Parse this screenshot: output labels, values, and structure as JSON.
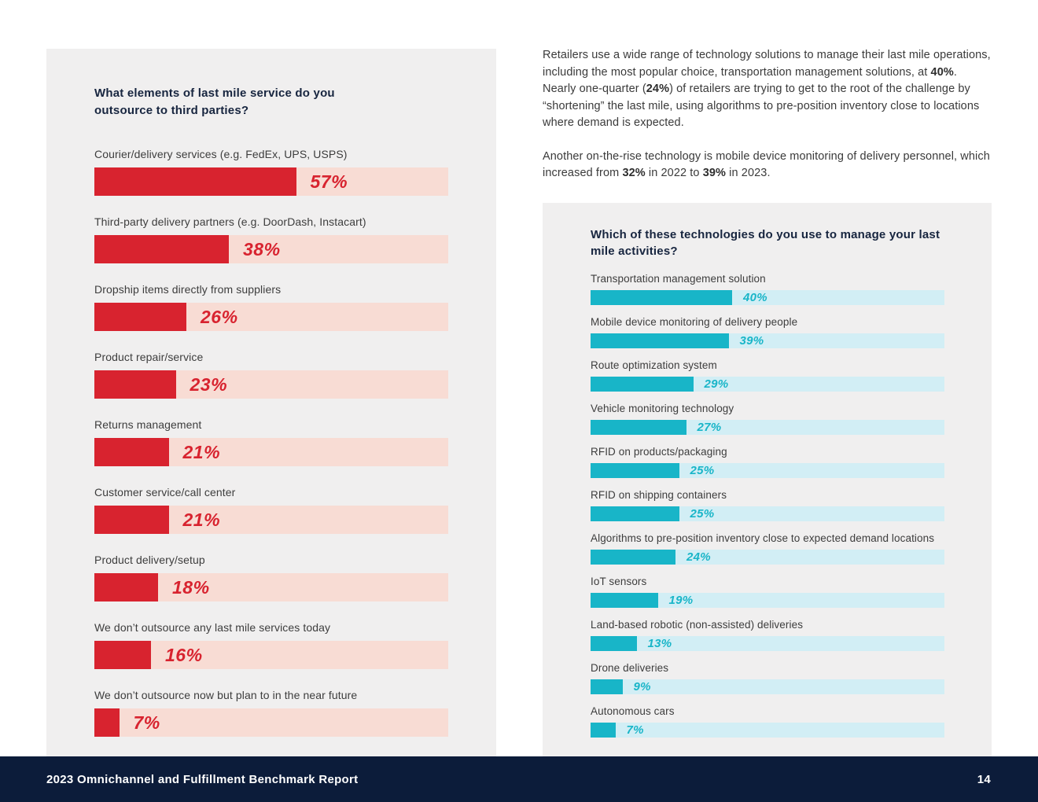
{
  "intro": {
    "paragraph1": [
      {
        "text": "Retailers use a wide range of technology solutions to manage their last mile operations, including the most popular choice, transportation management solutions, at ",
        "bold": false
      },
      {
        "text": "40%",
        "bold": true
      },
      {
        "text": ". Nearly one-quarter (",
        "bold": false
      },
      {
        "text": "24%",
        "bold": true
      },
      {
        "text": ") of retailers are trying to get to the root of the challenge by “shortening” the last mile, using algorithms to pre-position inventory close to locations where demand is expected.",
        "bold": false
      }
    ],
    "paragraph2": [
      {
        "text": "Another on-the-rise technology is mobile device monitoring of delivery personnel, which increased from ",
        "bold": false
      },
      {
        "text": "32%",
        "bold": true
      },
      {
        "text": " in 2022 to ",
        "bold": false
      },
      {
        "text": "39%",
        "bold": true
      },
      {
        "text": " in 2023.",
        "bold": false
      }
    ]
  },
  "chart_data": [
    {
      "type": "bar",
      "orientation": "horizontal",
      "title": "What elements of last mile service do you outsource to third parties?",
      "unit": "%",
      "xlim": [
        0,
        100
      ],
      "value_labels": true,
      "bar_color": "#d8232f",
      "track_color": "#f8dcd4",
      "categories": [
        "Courier/delivery services (e.g. FedEx, UPS, USPS)",
        "Third-party delivery partners (e.g. DoorDash, Instacart)",
        "Dropship items directly from suppliers",
        "Product repair/service",
        "Returns management",
        "Customer service/call center",
        "Product delivery/setup",
        "We don’t outsource any last mile services today",
        "We don’t outsource now but plan to in the near future"
      ],
      "values": [
        57,
        38,
        26,
        23,
        21,
        21,
        18,
        16,
        7
      ]
    },
    {
      "type": "bar",
      "orientation": "horizontal",
      "title": "Which of these technologies do you use to manage your last mile activities?",
      "unit": "%",
      "xlim": [
        0,
        100
      ],
      "value_labels": true,
      "bar_color": "#18b5c8",
      "track_color": "#d2eef5",
      "categories": [
        "Transportation management solution",
        "Mobile device monitoring of delivery people",
        "Route optimization system",
        "Vehicle monitoring technology",
        "RFID on products/packaging",
        "RFID on shipping containers",
        "Algorithms to pre-position inventory close to expected demand locations",
        "IoT sensors",
        "Land-based robotic (non-assisted) deliveries",
        "Drone deliveries",
        "Autonomous cars"
      ],
      "values": [
        40,
        39,
        29,
        27,
        25,
        25,
        24,
        19,
        13,
        9,
        7
      ]
    }
  ],
  "footer": {
    "report_title": "2023 Omnichannel and Fulfillment Benchmark Report",
    "page_number": "14"
  }
}
